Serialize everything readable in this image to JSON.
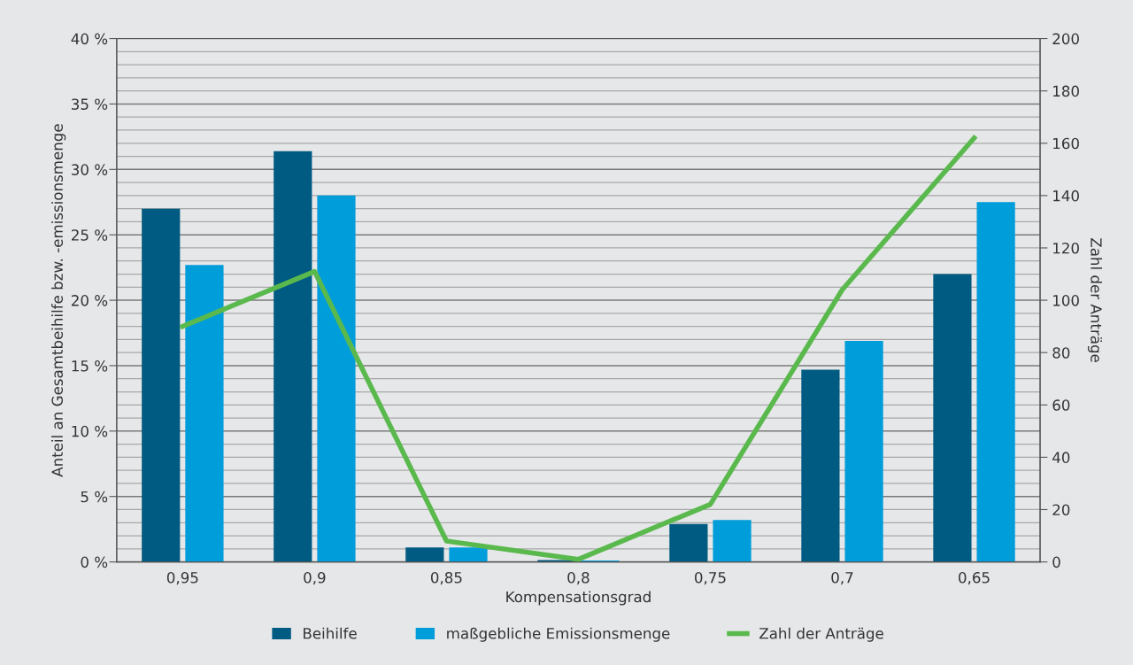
{
  "chart_data": {
    "type": "bar",
    "xlabel": "Kompensationsgrad",
    "ylabel": "Anteil an Gesamtbeihilfe bzw. -emissionsmenge",
    "y2label": "Zahl der Anträge",
    "categories": [
      "0,95",
      "0,9",
      "0,85",
      "0,8",
      "0,75",
      "0,7",
      "0,65"
    ],
    "series": [
      {
        "name": "Beihilfe",
        "color": "#005b82",
        "values": [
          27.0,
          31.4,
          1.1,
          0.15,
          2.9,
          14.7,
          22.0
        ]
      },
      {
        "name": "maßgebliche Emissionsmenge",
        "color": "#009ddb",
        "values": [
          22.7,
          28.0,
          1.1,
          0.1,
          3.2,
          16.9,
          27.5
        ]
      },
      {
        "name": "Zahl der Anträge",
        "type": "line",
        "axis": "y2",
        "color": "#5ab94d",
        "values": [
          90,
          111,
          8,
          1,
          22,
          104,
          162
        ]
      }
    ],
    "ylim": [
      0,
      40
    ],
    "yticks": [
      {
        "value": 0,
        "label": "0 %"
      },
      {
        "value": 1,
        "label": null
      },
      {
        "value": 2,
        "label": null
      },
      {
        "value": 3,
        "label": null
      },
      {
        "value": 4,
        "label": null
      },
      {
        "value": 5,
        "label": "5 %"
      },
      {
        "value": 6,
        "label": null
      },
      {
        "value": 7,
        "label": null
      },
      {
        "value": 8,
        "label": null
      },
      {
        "value": 9,
        "label": null
      },
      {
        "value": 10,
        "label": "10 %"
      },
      {
        "value": 11,
        "label": null
      },
      {
        "value": 12,
        "label": null
      },
      {
        "value": 13,
        "label": null
      },
      {
        "value": 14,
        "label": null
      },
      {
        "value": 15,
        "label": "15 %"
      },
      {
        "value": 16,
        "label": null
      },
      {
        "value": 17,
        "label": null
      },
      {
        "value": 18,
        "label": null
      },
      {
        "value": 19,
        "label": null
      },
      {
        "value": 20,
        "label": "20 %"
      },
      {
        "value": 21,
        "label": null
      },
      {
        "value": 22,
        "label": null
      },
      {
        "value": 23,
        "label": null
      },
      {
        "value": 24,
        "label": null
      },
      {
        "value": 25,
        "label": "25 %"
      },
      {
        "value": 26,
        "label": null
      },
      {
        "value": 27,
        "label": null
      },
      {
        "value": 28,
        "label": null
      },
      {
        "value": 29,
        "label": null
      },
      {
        "value": 30,
        "label": "30 %"
      },
      {
        "value": 31,
        "label": null
      },
      {
        "value": 32,
        "label": null
      },
      {
        "value": 33,
        "label": null
      },
      {
        "value": 34,
        "label": null
      },
      {
        "value": 35,
        "label": "35 %"
      },
      {
        "value": 36,
        "label": null
      },
      {
        "value": 37,
        "label": null
      },
      {
        "value": 38,
        "label": null
      },
      {
        "value": 39,
        "label": null
      },
      {
        "value": 40,
        "label": "40 %"
      }
    ],
    "y2lim": [
      0,
      200
    ],
    "y2ticks": [
      0,
      20,
      40,
      60,
      80,
      100,
      120,
      140,
      160,
      180,
      200
    ],
    "grid": "y",
    "legend": "bottom",
    "marker": "none",
    "line_style": "solid"
  }
}
